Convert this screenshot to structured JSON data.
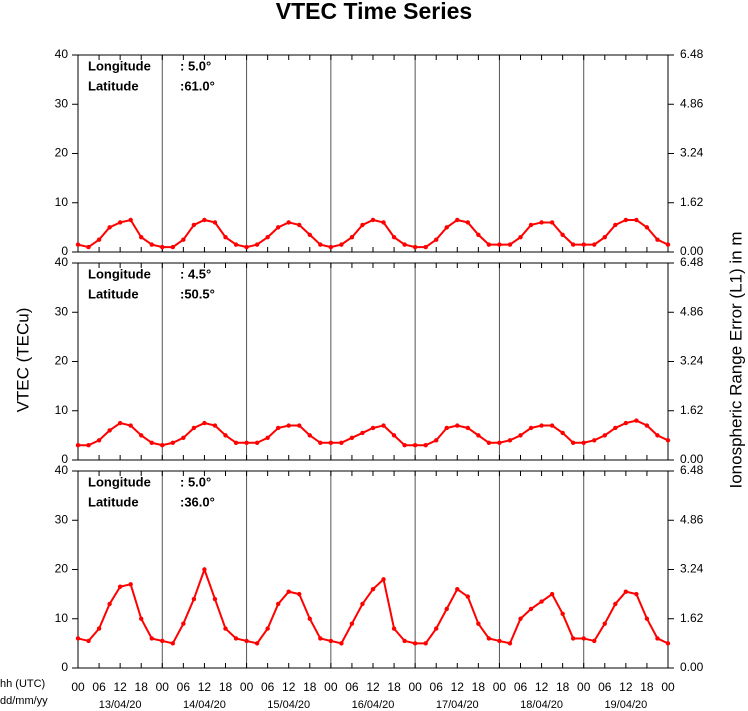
{
  "chart_data": [
    {
      "type": "line",
      "title": "VTEC Time Series",
      "y_label": "VTEC (TECu)",
      "y2_label": "Ionospheric Range Error (L1) in m",
      "annotations": [
        "Longitude",
        ":   5.0°",
        "Latitude",
        ":61.0°"
      ],
      "xlim": [
        0,
        168
      ],
      "ylim": [
        0,
        40
      ],
      "yticks": [
        0,
        10,
        20,
        30,
        40
      ],
      "y2lim": [
        0,
        6.48
      ],
      "y2ticks": [
        {
          "value": 0,
          "label": "0.00"
        },
        1.62,
        3.24,
        4.86,
        6.48
      ],
      "x": [
        0,
        3,
        6,
        9,
        12,
        15,
        18,
        21,
        24,
        27,
        30,
        33,
        36,
        39,
        42,
        45,
        48,
        51,
        54,
        57,
        60,
        63,
        66,
        69,
        72,
        75,
        78,
        81,
        84,
        87,
        90,
        93,
        96,
        99,
        102,
        105,
        108,
        111,
        114,
        117,
        120,
        123,
        126,
        129,
        132,
        135,
        138,
        141,
        144,
        147,
        150,
        153,
        156,
        159,
        162,
        165,
        168
      ],
      "series": [
        {
          "color": "#ff0000",
          "values": [
            1.5,
            1,
            2.5,
            5,
            6,
            6.5,
            3,
            1.5,
            1,
            1,
            2.5,
            5.5,
            6.5,
            6,
            3,
            1.5,
            1,
            1.5,
            3,
            5,
            6,
            5.5,
            3.5,
            1.5,
            1,
            1.5,
            3,
            5.5,
            6.5,
            6,
            3,
            1.5,
            1,
            1,
            2.5,
            5,
            6.5,
            6,
            3.5,
            1.5,
            1.5,
            1.5,
            3,
            5.5,
            6,
            6,
            3.5,
            1.5,
            1.5,
            1.5,
            3,
            5.5,
            6.5,
            6.5,
            5,
            2.5,
            1.5
          ]
        }
      ]
    },
    {
      "type": "line",
      "annotations": [
        "Longitude",
        ":   4.5°",
        "Latitude",
        ":50.5°"
      ],
      "xlim": [
        0,
        168
      ],
      "ylim": [
        0,
        40
      ],
      "yticks": [
        0,
        10,
        20,
        30,
        40
      ],
      "y2lim": [
        0,
        6.48
      ],
      "y2ticks": [
        {
          "value": 0,
          "label": "0.00"
        },
        1.62,
        3.24,
        4.86,
        6.48
      ],
      "x": [
        0,
        3,
        6,
        9,
        12,
        15,
        18,
        21,
        24,
        27,
        30,
        33,
        36,
        39,
        42,
        45,
        48,
        51,
        54,
        57,
        60,
        63,
        66,
        69,
        72,
        75,
        78,
        81,
        84,
        87,
        90,
        93,
        96,
        99,
        102,
        105,
        108,
        111,
        114,
        117,
        120,
        123,
        126,
        129,
        132,
        135,
        138,
        141,
        144,
        147,
        150,
        153,
        156,
        159,
        162,
        165,
        168
      ],
      "series": [
        {
          "color": "#ff0000",
          "values": [
            3,
            3,
            4,
            6,
            7.5,
            7,
            5,
            3.5,
            3,
            3.5,
            4.5,
            6.5,
            7.5,
            7,
            5,
            3.5,
            3.5,
            3.5,
            4.5,
            6.5,
            7,
            7,
            5,
            3.5,
            3.5,
            3.5,
            4.5,
            5.5,
            6.5,
            7,
            5,
            3,
            3,
            3,
            4,
            6.5,
            7,
            6.5,
            5,
            3.5,
            3.5,
            4,
            5,
            6.5,
            7,
            7,
            5.5,
            3.5,
            3.5,
            4,
            5,
            6.5,
            7.5,
            8,
            7,
            5,
            4
          ]
        }
      ]
    },
    {
      "type": "line",
      "annotations": [
        "Longitude",
        ":   5.0°",
        "Latitude",
        ":36.0°"
      ],
      "xlim": [
        0,
        168
      ],
      "ylim": [
        0,
        40
      ],
      "yticks": [
        0,
        10,
        20,
        30,
        40
      ],
      "y2lim": [
        0,
        6.48
      ],
      "y2ticks": [
        {
          "value": 0,
          "label": "0.00"
        },
        1.62,
        3.24,
        4.86,
        6.48
      ],
      "x_label_hours": "hh (UTC)",
      "x_label_dates": "dd/mm/yy",
      "dates": [
        "13/04/20",
        "14/04/20",
        "15/04/20",
        "16/04/20",
        "17/04/20",
        "18/04/20",
        "19/04/20"
      ],
      "xticks": [
        {
          "value": 0,
          "label": "00"
        },
        {
          "value": 6,
          "label": "06"
        },
        12,
        18,
        {
          "value": 24,
          "label": "00"
        },
        {
          "value": 30,
          "label": "06"
        },
        {
          "value": 36,
          "label": "12"
        },
        {
          "value": 42,
          "label": "18"
        },
        {
          "value": 48,
          "label": "00"
        },
        {
          "value": 54,
          "label": "06"
        },
        {
          "value": 60,
          "label": "12"
        },
        {
          "value": 66,
          "label": "18"
        },
        {
          "value": 72,
          "label": "00"
        },
        {
          "value": 78,
          "label": "06"
        },
        {
          "value": 84,
          "label": "12"
        },
        {
          "value": 90,
          "label": "18"
        },
        {
          "value": 96,
          "label": "00"
        },
        {
          "value": 102,
          "label": "06"
        },
        {
          "value": 108,
          "label": "12"
        },
        {
          "value": 114,
          "label": "18"
        },
        {
          "value": 120,
          "label": "00"
        },
        {
          "value": 126,
          "label": "06"
        },
        {
          "value": 132,
          "label": "12"
        },
        {
          "value": 138,
          "label": "18"
        },
        {
          "value": 144,
          "label": "00"
        },
        {
          "value": 150,
          "label": "06"
        },
        {
          "value": 156,
          "label": "12"
        },
        {
          "value": 162,
          "label": "18"
        },
        {
          "value": 168,
          "label": "00"
        }
      ],
      "x": [
        0,
        3,
        6,
        9,
        12,
        15,
        18,
        21,
        24,
        27,
        30,
        33,
        36,
        39,
        42,
        45,
        48,
        51,
        54,
        57,
        60,
        63,
        66,
        69,
        72,
        75,
        78,
        81,
        84,
        87,
        90,
        93,
        96,
        99,
        102,
        105,
        108,
        111,
        114,
        117,
        120,
        123,
        126,
        129,
        132,
        135,
        138,
        141,
        144,
        147,
        150,
        153,
        156,
        159,
        162,
        165,
        168
      ],
      "series": [
        {
          "color": "#ff0000",
          "values": [
            6,
            5.5,
            8,
            13,
            16.5,
            17,
            10,
            6,
            5.5,
            5,
            9,
            14,
            20,
            14,
            8,
            6,
            5.5,
            5,
            8,
            13,
            15.5,
            15,
            10,
            6,
            5.5,
            5,
            9,
            13,
            16,
            18,
            8,
            5.5,
            5,
            5,
            8,
            12,
            16,
            14.5,
            9,
            6,
            5.5,
            5,
            10,
            12,
            13.5,
            15,
            11,
            6,
            6,
            5.5,
            9,
            13,
            15.5,
            15,
            10,
            6,
            5
          ]
        }
      ]
    }
  ]
}
